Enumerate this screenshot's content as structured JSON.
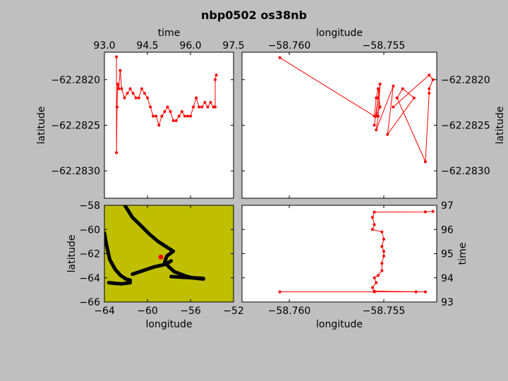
{
  "figure": {
    "title": "nbp0502 os38nb",
    "background": "#bfbfbf",
    "trace_color": "#ff0000",
    "track_color": "#000000",
    "map_background": "#bfbf00"
  },
  "chart_data": [
    {
      "id": "time_lat",
      "type": "line",
      "xlabel": "time",
      "ylabel": "latitude",
      "xlim": [
        93.0,
        97.5
      ],
      "ylim": [
        -62.2833,
        -62.2817
      ],
      "xticks": [
        "93.0",
        "94.5",
        "96.0",
        "97.5"
      ],
      "yticks": [
        "−62.2820",
        "−62.2825",
        "−62.2830"
      ],
      "x": [
        93.42,
        93.42,
        93.44,
        93.46,
        93.5,
        93.55,
        93.6,
        93.7,
        93.8,
        93.9,
        94.0,
        94.1,
        94.2,
        94.3,
        94.4,
        94.5,
        94.6,
        94.7,
        94.8,
        94.9,
        95.0,
        95.1,
        95.2,
        95.3,
        95.4,
        95.5,
        95.6,
        95.7,
        95.8,
        95.9,
        96.0,
        96.1,
        96.2,
        96.3,
        96.4,
        96.5,
        96.6,
        96.7,
        96.8,
        96.86,
        96.86,
        96.9
      ],
      "y": [
        -62.28175,
        -62.2828,
        -62.2823,
        -62.28205,
        -62.2821,
        -62.2819,
        -62.2821,
        -62.2822,
        -62.28215,
        -62.2821,
        -62.28215,
        -62.2822,
        -62.2822,
        -62.2821,
        -62.28215,
        -62.2822,
        -62.2823,
        -62.2824,
        -62.2824,
        -62.2825,
        -62.2824,
        -62.28235,
        -62.2823,
        -62.28235,
        -62.28245,
        -62.28245,
        -62.2824,
        -62.28235,
        -62.2824,
        -62.2824,
        -62.2824,
        -62.2823,
        -62.2822,
        -62.2823,
        -62.2823,
        -62.28225,
        -62.2823,
        -62.28225,
        -62.2823,
        -62.2823,
        -62.282,
        -62.28195
      ]
    },
    {
      "id": "lon_lat",
      "type": "line",
      "xlabel": "longitude",
      "ylabel": "latitude",
      "xlim": [
        -58.7625,
        -58.7522
      ],
      "ylim": [
        -62.2833,
        -62.2817
      ],
      "xticks": [
        "−58.760",
        "−58.755"
      ],
      "yticks": [
        "−62.2820",
        "−62.2825",
        "−62.2830"
      ],
      "x": [
        -58.7605,
        -58.7555,
        -58.7554,
        -58.7553,
        -58.7552,
        -58.7554,
        -58.7553,
        -58.7555,
        -58.7552,
        -58.7553,
        -58.7554,
        -58.7545,
        -58.7548,
        -58.7534,
        -58.754,
        -58.7543,
        -58.7528,
        -58.7526,
        -58.7526,
        -58.7524,
        -58.7526,
        -58.7545
      ],
      "y": [
        -62.28176,
        -62.2824,
        -62.2822,
        -62.2821,
        -62.2823,
        -62.2824,
        -62.2822,
        -62.2825,
        -62.28205,
        -62.2824,
        -62.28255,
        -62.28207,
        -62.2826,
        -62.2822,
        -62.2821,
        -62.2822,
        -62.2829,
        -62.28215,
        -62.2821,
        -62.282,
        -62.28195,
        -62.2823
      ]
    },
    {
      "id": "map",
      "type": "scatter",
      "xlabel": "longitude",
      "ylabel": "latitude",
      "xlim": [
        -64,
        -52
      ],
      "ylim": [
        -66,
        -58
      ],
      "xticks": [
        "−64",
        "−60",
        "−56",
        "−52"
      ],
      "yticks": [
        "−58",
        "−60",
        "−62",
        "−64",
        "−66"
      ],
      "tracks": [
        {
          "x": [
            -64.0,
            -63.8,
            -63.5,
            -63.0,
            -62.5,
            -62.0,
            -61.6
          ],
          "y": [
            -60.3,
            -61.3,
            -62.5,
            -63.3,
            -63.8,
            -64.1,
            -64.2
          ]
        },
        {
          "x": [
            -63.6,
            -63.1,
            -62.4,
            -61.6
          ],
          "y": [
            -64.4,
            -64.45,
            -64.5,
            -64.4
          ]
        },
        {
          "x": [
            -62.1,
            -61.4,
            -60.7,
            -59.8,
            -59.0,
            -58.3,
            -57.6
          ],
          "y": [
            -58.0,
            -59.0,
            -59.6,
            -60.4,
            -61.0,
            -61.4,
            -61.8
          ]
        },
        {
          "x": [
            -57.6,
            -58.2,
            -58.4,
            -58.0,
            -57.5,
            -56.9,
            -56.3,
            -55.8,
            -55.3,
            -54.8
          ],
          "y": [
            -61.8,
            -62.2,
            -62.7,
            -63.1,
            -63.5,
            -63.7,
            -63.9,
            -64.0,
            -64.05,
            -64.1
          ]
        },
        {
          "x": [
            -61.4,
            -60.4,
            -59.4,
            -58.4,
            -57.8
          ],
          "y": [
            -63.7,
            -63.4,
            -63.1,
            -62.9,
            -62.6
          ]
        },
        {
          "x": [
            -57.8,
            -56.8,
            -55.8,
            -54.8
          ],
          "y": [
            -63.9,
            -63.95,
            -64.0,
            -64.05
          ]
        }
      ],
      "marker": {
        "x": -58.755,
        "y": -62.282
      }
    },
    {
      "id": "lon_time",
      "type": "line",
      "xlabel": "longitude",
      "ylabel": "time",
      "xlim": [
        -58.7625,
        -58.7522
      ],
      "ylim": [
        93,
        97
      ],
      "xticks": [
        "−58.760",
        "−58.755"
      ],
      "yticks": [
        "93",
        "94",
        "95",
        "96",
        "97"
      ],
      "x": [
        -58.7605,
        -58.7555,
        -58.7533,
        -58.7528,
        -58.7555,
        -58.7556,
        -58.7554,
        -58.7555,
        -58.7553,
        -58.7551,
        -58.7551,
        -58.755,
        -58.755,
        -58.7551,
        -58.755,
        -58.7551,
        -58.7556,
        -58.7555,
        -58.7556,
        -58.7555,
        -58.7528,
        -58.7524
      ],
      "y": [
        93.42,
        93.42,
        93.42,
        93.42,
        93.45,
        93.6,
        93.8,
        94.0,
        94.1,
        94.3,
        94.6,
        94.9,
        95.1,
        95.3,
        95.6,
        95.9,
        96.0,
        96.2,
        96.5,
        96.72,
        96.73,
        96.75
      ]
    }
  ]
}
